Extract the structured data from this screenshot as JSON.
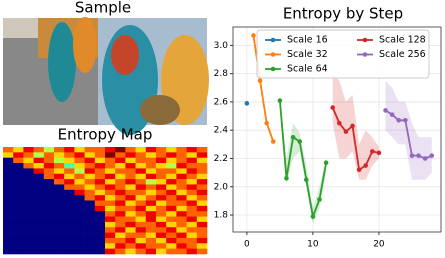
{
  "image": {
    "title": "Sample"
  },
  "chart_data": [
    {
      "type": "heatmap",
      "title": "Entropy Map",
      "values": [
        [
          7,
          6,
          8,
          7,
          5,
          7,
          8,
          6,
          7,
          7,
          8,
          9,
          7,
          6,
          8,
          7,
          6,
          7,
          8,
          7
        ],
        [
          6,
          8,
          7,
          5,
          7,
          6,
          7,
          8,
          6,
          7,
          9,
          7,
          8,
          7,
          6,
          7,
          8,
          7,
          6,
          8
        ],
        [
          0,
          7,
          6,
          8,
          7,
          5,
          6,
          7,
          8,
          6,
          7,
          8,
          6,
          7,
          7,
          8,
          6,
          7,
          8,
          6
        ],
        [
          0,
          0,
          7,
          6,
          8,
          7,
          4,
          6,
          7,
          8,
          7,
          6,
          8,
          6,
          7,
          6,
          5,
          8,
          7,
          7
        ],
        [
          0,
          0,
          0,
          8,
          7,
          6,
          7,
          5,
          8,
          7,
          6,
          7,
          7,
          8,
          6,
          7,
          7,
          6,
          8,
          7
        ],
        [
          0,
          0,
          0,
          0,
          7,
          8,
          6,
          7,
          6,
          7,
          8,
          6,
          7,
          6,
          8,
          7,
          6,
          8,
          7,
          6
        ],
        [
          0,
          0,
          0,
          0,
          0,
          7,
          8,
          6,
          7,
          8,
          6,
          7,
          8,
          7,
          5,
          6,
          8,
          7,
          6,
          8
        ],
        [
          0,
          0,
          0,
          0,
          0,
          0,
          7,
          7,
          6,
          7,
          8,
          7,
          6,
          8,
          7,
          8,
          6,
          7,
          8,
          7
        ],
        [
          0,
          0,
          0,
          0,
          0,
          0,
          0,
          8,
          7,
          6,
          7,
          8,
          7,
          7,
          6,
          7,
          8,
          6,
          7,
          8
        ],
        [
          0,
          0,
          0,
          0,
          0,
          0,
          0,
          0,
          7,
          8,
          6,
          7,
          8,
          6,
          7,
          8,
          7,
          8,
          6,
          7
        ],
        [
          0,
          0,
          0,
          0,
          0,
          0,
          0,
          0,
          0,
          7,
          7,
          8,
          6,
          7,
          8,
          6,
          7,
          7,
          8,
          6
        ],
        [
          0,
          0,
          0,
          0,
          0,
          0,
          0,
          0,
          0,
          8,
          6,
          7,
          7,
          8,
          6,
          7,
          8,
          6,
          7,
          8
        ],
        [
          0,
          0,
          0,
          0,
          0,
          0,
          0,
          0,
          0,
          0,
          7,
          8,
          6,
          7,
          8,
          7,
          6,
          8,
          7,
          7
        ],
        [
          0,
          0,
          0,
          0,
          0,
          0,
          0,
          0,
          0,
          0,
          8,
          7,
          7,
          6,
          8,
          6,
          7,
          7,
          8,
          6
        ],
        [
          0,
          0,
          0,
          0,
          0,
          0,
          0,
          0,
          0,
          0,
          6,
          7,
          8,
          7,
          7,
          8,
          6,
          7,
          6,
          8
        ],
        [
          0,
          0,
          0,
          0,
          0,
          0,
          0,
          0,
          0,
          0,
          7,
          8,
          6,
          8,
          7,
          7,
          8,
          6,
          7,
          7
        ],
        [
          0,
          0,
          0,
          0,
          0,
          0,
          0,
          0,
          0,
          0,
          8,
          6,
          7,
          7,
          6,
          8,
          7,
          8,
          6,
          7
        ],
        [
          0,
          0,
          0,
          0,
          0,
          0,
          0,
          0,
          0,
          0,
          7,
          7,
          8,
          6,
          7,
          6,
          8,
          7,
          7,
          8
        ],
        [
          0,
          0,
          0,
          0,
          0,
          0,
          0,
          0,
          0,
          0,
          6,
          8,
          7,
          8,
          7,
          7,
          6,
          8,
          7,
          6
        ],
        [
          0,
          0,
          0,
          0,
          0,
          0,
          0,
          0,
          0,
          0,
          8,
          7,
          6,
          7,
          8,
          6,
          7,
          7,
          8,
          7
        ]
      ],
      "vlim": [
        0,
        9
      ],
      "colormap": "jet"
    },
    {
      "type": "line",
      "title": "Entropy by Step",
      "xlim": [
        -2.1,
        29.4
      ],
      "ylim": [
        1.68,
        3.13
      ],
      "xticks": [
        0,
        10,
        20
      ],
      "yticks": [
        1.8,
        {
          "value": 2,
          "label": "2.0"
        },
        2.2,
        2.4,
        2.6,
        2.8,
        {
          "value": 3,
          "label": "3.0"
        }
      ],
      "grid": true,
      "legend": "upper center",
      "series": [
        {
          "name": "Scale 16",
          "color": "#1f77b4",
          "x": [
            0
          ],
          "values": [
            2.59
          ]
        },
        {
          "name": "Scale 32",
          "color": "#ff7f0e",
          "x": [
            1,
            2,
            3,
            4
          ],
          "values": [
            3.07,
            2.75,
            2.45,
            2.32
          ]
        },
        {
          "name": "Scale 64",
          "color": "#2ca02c",
          "x": [
            5,
            6,
            7,
            8,
            9,
            10,
            11,
            12
          ],
          "values": [
            2.61,
            2.06,
            2.35,
            2.32,
            2.05,
            1.79,
            1.91,
            2.17
          ],
          "lower": [
            2.58,
            2.02,
            2.2,
            2.25,
            2.0,
            1.74,
            1.85,
            2.1
          ],
          "upper": [
            2.64,
            2.2,
            2.45,
            2.38,
            2.15,
            1.85,
            2.0,
            2.2
          ]
        },
        {
          "name": "Scale 128",
          "color": "#d62728",
          "x": [
            13,
            14,
            15,
            16,
            17,
            18,
            19,
            20
          ],
          "values": [
            2.56,
            2.45,
            2.39,
            2.43,
            2.12,
            2.15,
            2.25,
            2.24
          ],
          "lower": [
            2.45,
            2.2,
            2.2,
            2.25,
            2.05,
            2.05,
            2.15,
            2.2
          ],
          "upper": [
            2.8,
            2.75,
            2.6,
            2.65,
            2.3,
            2.4,
            2.35,
            2.28
          ]
        },
        {
          "name": "Scale 256",
          "color": "#9467bd",
          "x": [
            21,
            22,
            23,
            24,
            25,
            26,
            27,
            28
          ],
          "values": [
            2.54,
            2.51,
            2.47,
            2.47,
            2.22,
            2.22,
            2.2,
            2.22
          ],
          "lower": [
            2.4,
            2.35,
            2.3,
            2.3,
            2.05,
            2.05,
            2.05,
            2.1
          ],
          "upper": [
            2.75,
            2.7,
            2.6,
            2.6,
            2.45,
            2.35,
            2.35,
            2.35
          ]
        }
      ]
    }
  ]
}
